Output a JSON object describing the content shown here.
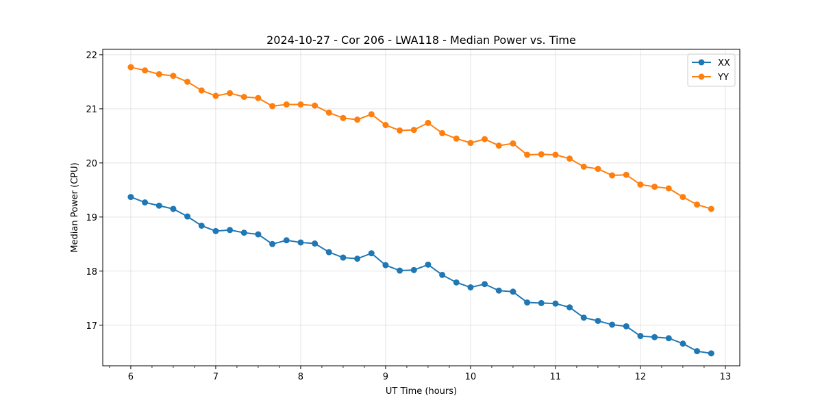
{
  "chart_data": {
    "type": "line",
    "title": "2024-10-27 - Cor 206 - LWA118 - Median Power vs. Time",
    "xlabel": "UT Time (hours)",
    "ylabel": "Median Power (CPU)",
    "xlim": [
      5.67,
      13.17
    ],
    "ylim": [
      16.25,
      22.1
    ],
    "xticks": [
      6,
      7,
      8,
      9,
      10,
      11,
      12,
      13
    ],
    "yticks": [
      17,
      18,
      19,
      20,
      21,
      22
    ],
    "grid": true,
    "legend_position": "top-right",
    "x": [
      6.0,
      6.1667,
      6.3333,
      6.5,
      6.6667,
      6.8333,
      7.0,
      7.1667,
      7.3333,
      7.5,
      7.6667,
      7.8333,
      8.0,
      8.1667,
      8.3333,
      8.5,
      8.6667,
      8.8333,
      9.0,
      9.1667,
      9.3333,
      9.5,
      9.6667,
      9.8333,
      10.0,
      10.1667,
      10.3333,
      10.5,
      10.6667,
      10.8333,
      11.0,
      11.1667,
      11.3333,
      11.5,
      11.6667,
      11.8333,
      12.0,
      12.1667,
      12.3333,
      12.5,
      12.6667,
      12.8333
    ],
    "series": [
      {
        "name": "XX",
        "color": "#1f77b4",
        "values": [
          19.37,
          19.27,
          19.21,
          19.15,
          19.01,
          18.84,
          18.74,
          18.76,
          18.71,
          18.68,
          18.5,
          18.57,
          18.53,
          18.51,
          18.35,
          18.25,
          18.23,
          18.33,
          18.11,
          18.01,
          18.02,
          18.12,
          17.93,
          17.79,
          17.7,
          17.76,
          17.64,
          17.62,
          17.42,
          17.41,
          17.4,
          17.33,
          17.14,
          17.08,
          17.01,
          16.98,
          16.8,
          16.78,
          16.76,
          16.66,
          16.52,
          16.48
        ]
      },
      {
        "name": "YY",
        "color": "#ff7f0e",
        "values": [
          21.77,
          21.71,
          21.64,
          21.61,
          21.5,
          21.34,
          21.24,
          21.29,
          21.22,
          21.2,
          21.05,
          21.08,
          21.08,
          21.06,
          20.93,
          20.83,
          20.8,
          20.9,
          20.7,
          20.6,
          20.61,
          20.74,
          20.55,
          20.45,
          20.37,
          20.44,
          20.32,
          20.36,
          20.15,
          20.16,
          20.15,
          20.08,
          19.93,
          19.89,
          19.77,
          19.78,
          19.6,
          19.56,
          19.53,
          19.37,
          19.23,
          19.15
        ]
      }
    ]
  }
}
